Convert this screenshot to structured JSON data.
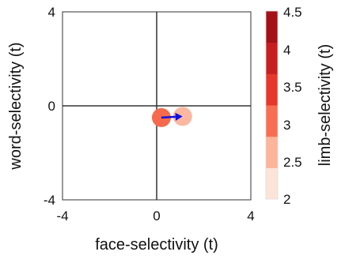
{
  "chart_data": {
    "type": "scatter",
    "xlabel": "face-selectivity (t)",
    "ylabel": "word-selectivity (t)",
    "xlim": [
      -4,
      4
    ],
    "ylim": [
      -4,
      4
    ],
    "x_ticks": [
      "-4",
      "0",
      "4"
    ],
    "y_ticks": [
      "4",
      "0",
      "-4"
    ],
    "grid": false,
    "zero_lines": true,
    "points": [
      {
        "x": 0.2,
        "y": -0.5,
        "color_value": 3.0,
        "color": "#f56a4c"
      },
      {
        "x": 1.1,
        "y": -0.45,
        "color_value": 2.5,
        "color": "#fbb7a0"
      }
    ],
    "arrow": {
      "from": [
        0.2,
        -0.5
      ],
      "to": [
        1.1,
        -0.45
      ],
      "color": "#1010e0"
    },
    "colorbar": {
      "label": "limb-selectivity (t)",
      "min": 2,
      "max": 4.5,
      "ticks": [
        "4.5",
        "4",
        "3.5",
        "3",
        "2.5",
        "2"
      ],
      "bands": [
        "#fde4d9",
        "#fcb49a",
        "#f86e53",
        "#e6372a",
        "#c71f20",
        "#a31217"
      ]
    }
  }
}
